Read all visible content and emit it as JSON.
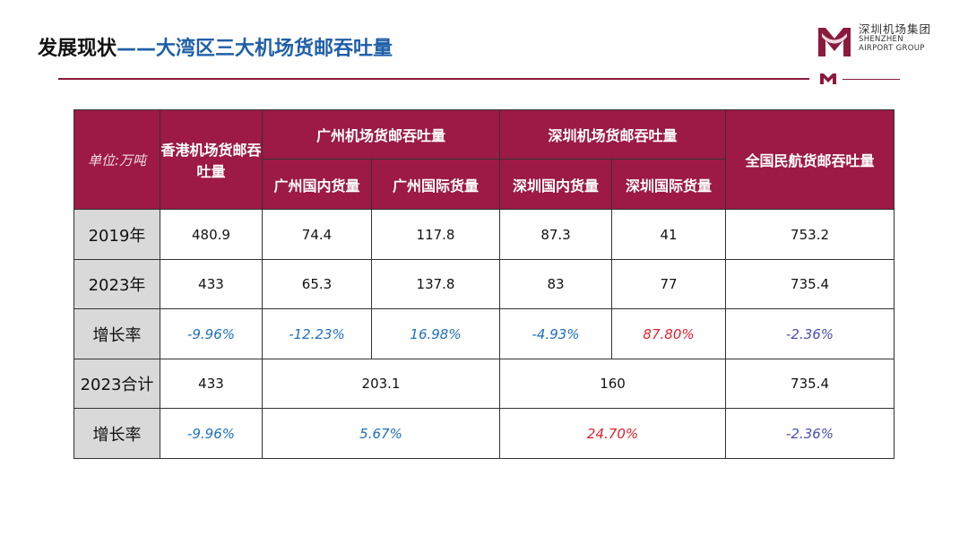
{
  "header": {
    "title_main": "发展现状",
    "title_sub": "——大湾区三大机场货邮吞吐量"
  },
  "logo": {
    "name_cn": "深圳机场集团",
    "name_en_1": "SHENZHEN",
    "name_en_2": "AIRPORT GROUP",
    "icon": "shenzhen-airport-logo",
    "brand_color": "#8b1a3c"
  },
  "table": {
    "unit_label": "单位:万吨",
    "headers": {
      "hk": "香港机场货邮吞吐量",
      "gz_group": "广州机场货邮吞吐量",
      "sz_group": "深圳机场货邮吞吐量",
      "national": "全国民航货邮吞吐量",
      "gz_domestic": "广州国内货量",
      "gz_international": "广州国际货量",
      "sz_domestic": "深圳国内货量",
      "sz_international": "深圳国际货量"
    },
    "rows": [
      {
        "label": "2019年",
        "hk": "480.9",
        "gz_dom": "74.4",
        "gz_intl": "117.8",
        "sz_dom": "87.3",
        "sz_intl": "41",
        "national": "753.2"
      },
      {
        "label": "2023年",
        "hk": "433",
        "gz_dom": "65.3",
        "gz_intl": "137.8",
        "sz_dom": "83",
        "sz_intl": "77",
        "national": "735.4"
      },
      {
        "label": "增长率",
        "hk": "-9.96%",
        "gz_dom": "-12.23%",
        "gz_intl": "16.98%",
        "sz_dom": "-4.93%",
        "sz_intl": "87.80%",
        "national": "-2.36%"
      },
      {
        "label": "2023合计",
        "hk": "433",
        "gz_total": "203.1",
        "sz_total": "160",
        "national": "735.4"
      },
      {
        "label": "增长率",
        "hk": "-9.96%",
        "gz_total": "5.67%",
        "sz_total": "24.70%",
        "national": "-2.36%"
      }
    ],
    "colors": {
      "header_bg": "#9c1a45",
      "row_label_bg": "#d9d9d9",
      "positive_growth": "#1f6fbf",
      "highlight_growth": "#e01e2b",
      "national_growth": "#4a4fb0"
    }
  }
}
